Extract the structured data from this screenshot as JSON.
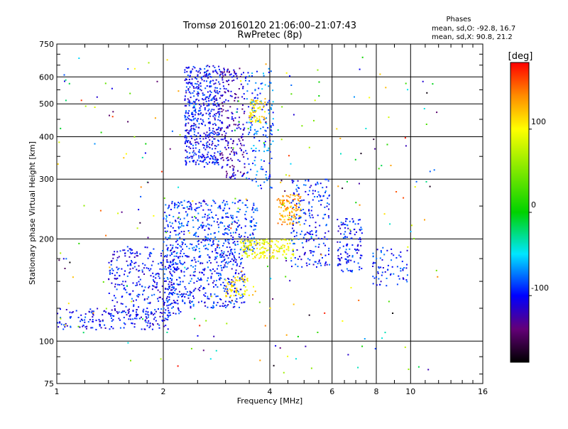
{
  "chart_data": {
    "type": "scatter",
    "title": "Tromsø 20160120 21:06:00–21:07:43",
    "subtitle": "RwPretec (8p)",
    "info_title": "Phases",
    "info_lines": [
      "mean, sd,O: -92.8, 16.7",
      "mean, sd,X:  90.8, 21.2"
    ],
    "xlabel": "Frequency [MHz]",
    "ylabel": "Stationary phase Virtual Height [km]",
    "x_scale": "log",
    "y_scale": "log",
    "xlim": [
      1,
      16
    ],
    "ylim": [
      75,
      750
    ],
    "x_ticks": [
      1,
      2,
      4,
      6,
      8,
      10,
      16
    ],
    "x_tick_labels": [
      "1",
      "2",
      "4",
      "6",
      "8",
      "10",
      "16"
    ],
    "y_ticks": [
      75,
      100,
      200,
      300,
      400,
      500,
      600,
      750
    ],
    "y_tick_labels": [
      "75",
      "100",
      "200",
      "300",
      "400",
      "500",
      "600",
      "750"
    ],
    "grid": true,
    "colorbar": {
      "label": "[deg]",
      "range": [
        -180,
        180
      ],
      "ticks": [
        -100,
        0,
        100
      ],
      "tick_labels": [
        "-100",
        "0",
        "100"
      ]
    },
    "clusters": [
      {
        "name": "low-F lower trace",
        "x": [
          1.0,
          2.1
        ],
        "y": [
          108,
          125
        ],
        "phase": -100,
        "count": 180
      },
      {
        "name": "E/F rising trace",
        "x": [
          1.4,
          2.3
        ],
        "y": [
          120,
          190
        ],
        "phase": -100,
        "count": 320
      },
      {
        "name": "F region wide band",
        "x": [
          2.0,
          3.4
        ],
        "y": [
          125,
          180
        ],
        "phase": -95,
        "count": 360
      },
      {
        "name": "F region mid band",
        "x": [
          2.0,
          3.7
        ],
        "y": [
          180,
          260
        ],
        "phase": -90,
        "count": 420
      },
      {
        "name": "high column blue",
        "x": [
          2.3,
          2.9
        ],
        "y": [
          330,
          650
        ],
        "phase": -100,
        "count": 520
      },
      {
        "name": "high column violet",
        "x": [
          2.9,
          3.4
        ],
        "y": [
          300,
          640
        ],
        "phase": -120,
        "count": 220
      },
      {
        "name": "high column mixed",
        "x": [
          3.4,
          4.1
        ],
        "y": [
          280,
          640
        ],
        "phase": -80,
        "count": 160
      },
      {
        "name": "X trace yellow",
        "x": [
          3.5,
          3.9
        ],
        "y": [
          440,
          520
        ],
        "phase": 110,
        "count": 60
      },
      {
        "name": "X trace lower",
        "x": [
          3.0,
          3.6
        ],
        "y": [
          135,
          155
        ],
        "phase": 110,
        "count": 60
      },
      {
        "name": "X mid yellow",
        "x": [
          3.3,
          4.7
        ],
        "y": [
          175,
          200
        ],
        "phase": 95,
        "count": 160
      },
      {
        "name": "X orange 4.4 MHz",
        "x": [
          4.2,
          4.9
        ],
        "y": [
          220,
          270
        ],
        "phase": 130,
        "count": 110
      },
      {
        "name": "O upper 5 MHz",
        "x": [
          4.6,
          5.9
        ],
        "y": [
          165,
          300
        ],
        "phase": -95,
        "count": 200
      },
      {
        "name": "O 6-7 MHz",
        "x": [
          6.2,
          7.3
        ],
        "y": [
          160,
          230
        ],
        "phase": -95,
        "count": 120
      },
      {
        "name": "O 8-9 MHz",
        "x": [
          7.8,
          9.8
        ],
        "y": [
          145,
          190
        ],
        "phase": -95,
        "count": 70
      },
      {
        "name": "scattered noise",
        "x": [
          1.0,
          12.0
        ],
        "y": [
          80,
          700
        ],
        "phase": 0,
        "count": 260
      }
    ]
  }
}
